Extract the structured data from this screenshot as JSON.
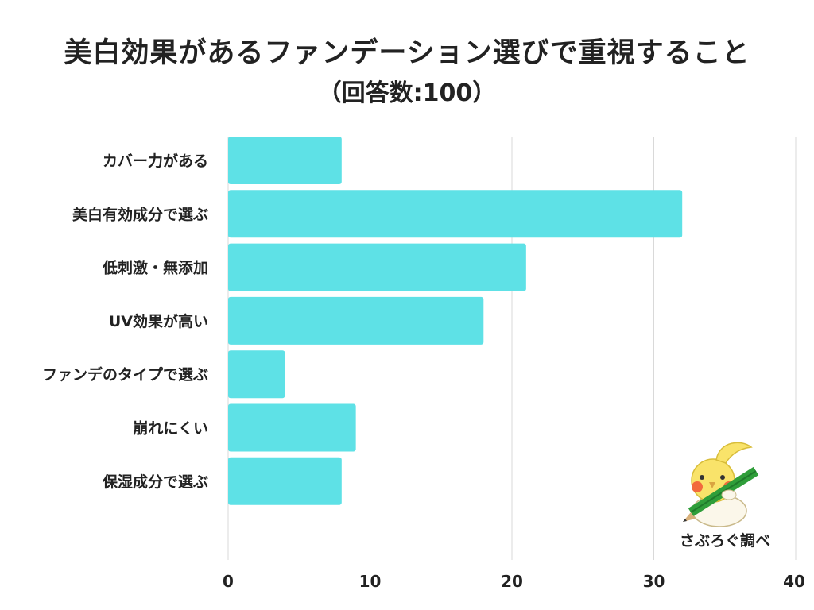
{
  "title": "美白効果があるファンデーション選びで重視すること",
  "subtitle": "（回答数:100）",
  "credit": "さぶろぐ調べ",
  "colors": {
    "bar": "#5ee1e6",
    "grid": "#d9d9d9",
    "text": "#222222"
  },
  "mascot_icon": "cockatiel-with-pencil-icon",
  "chart_data": {
    "type": "bar",
    "orientation": "horizontal",
    "categories": [
      "カバー力がある",
      "美白有効成分で選ぶ",
      "低刺激・無添加",
      "UV効果が高い",
      "ファンデのタイプで選ぶ",
      "崩れにくい",
      "保湿成分で選ぶ"
    ],
    "values": [
      8,
      32,
      21,
      18,
      4,
      9,
      8
    ],
    "xlim": [
      0,
      40
    ],
    "xticks": [
      0,
      10,
      20,
      30,
      40
    ],
    "grid": true,
    "legend": "none"
  }
}
